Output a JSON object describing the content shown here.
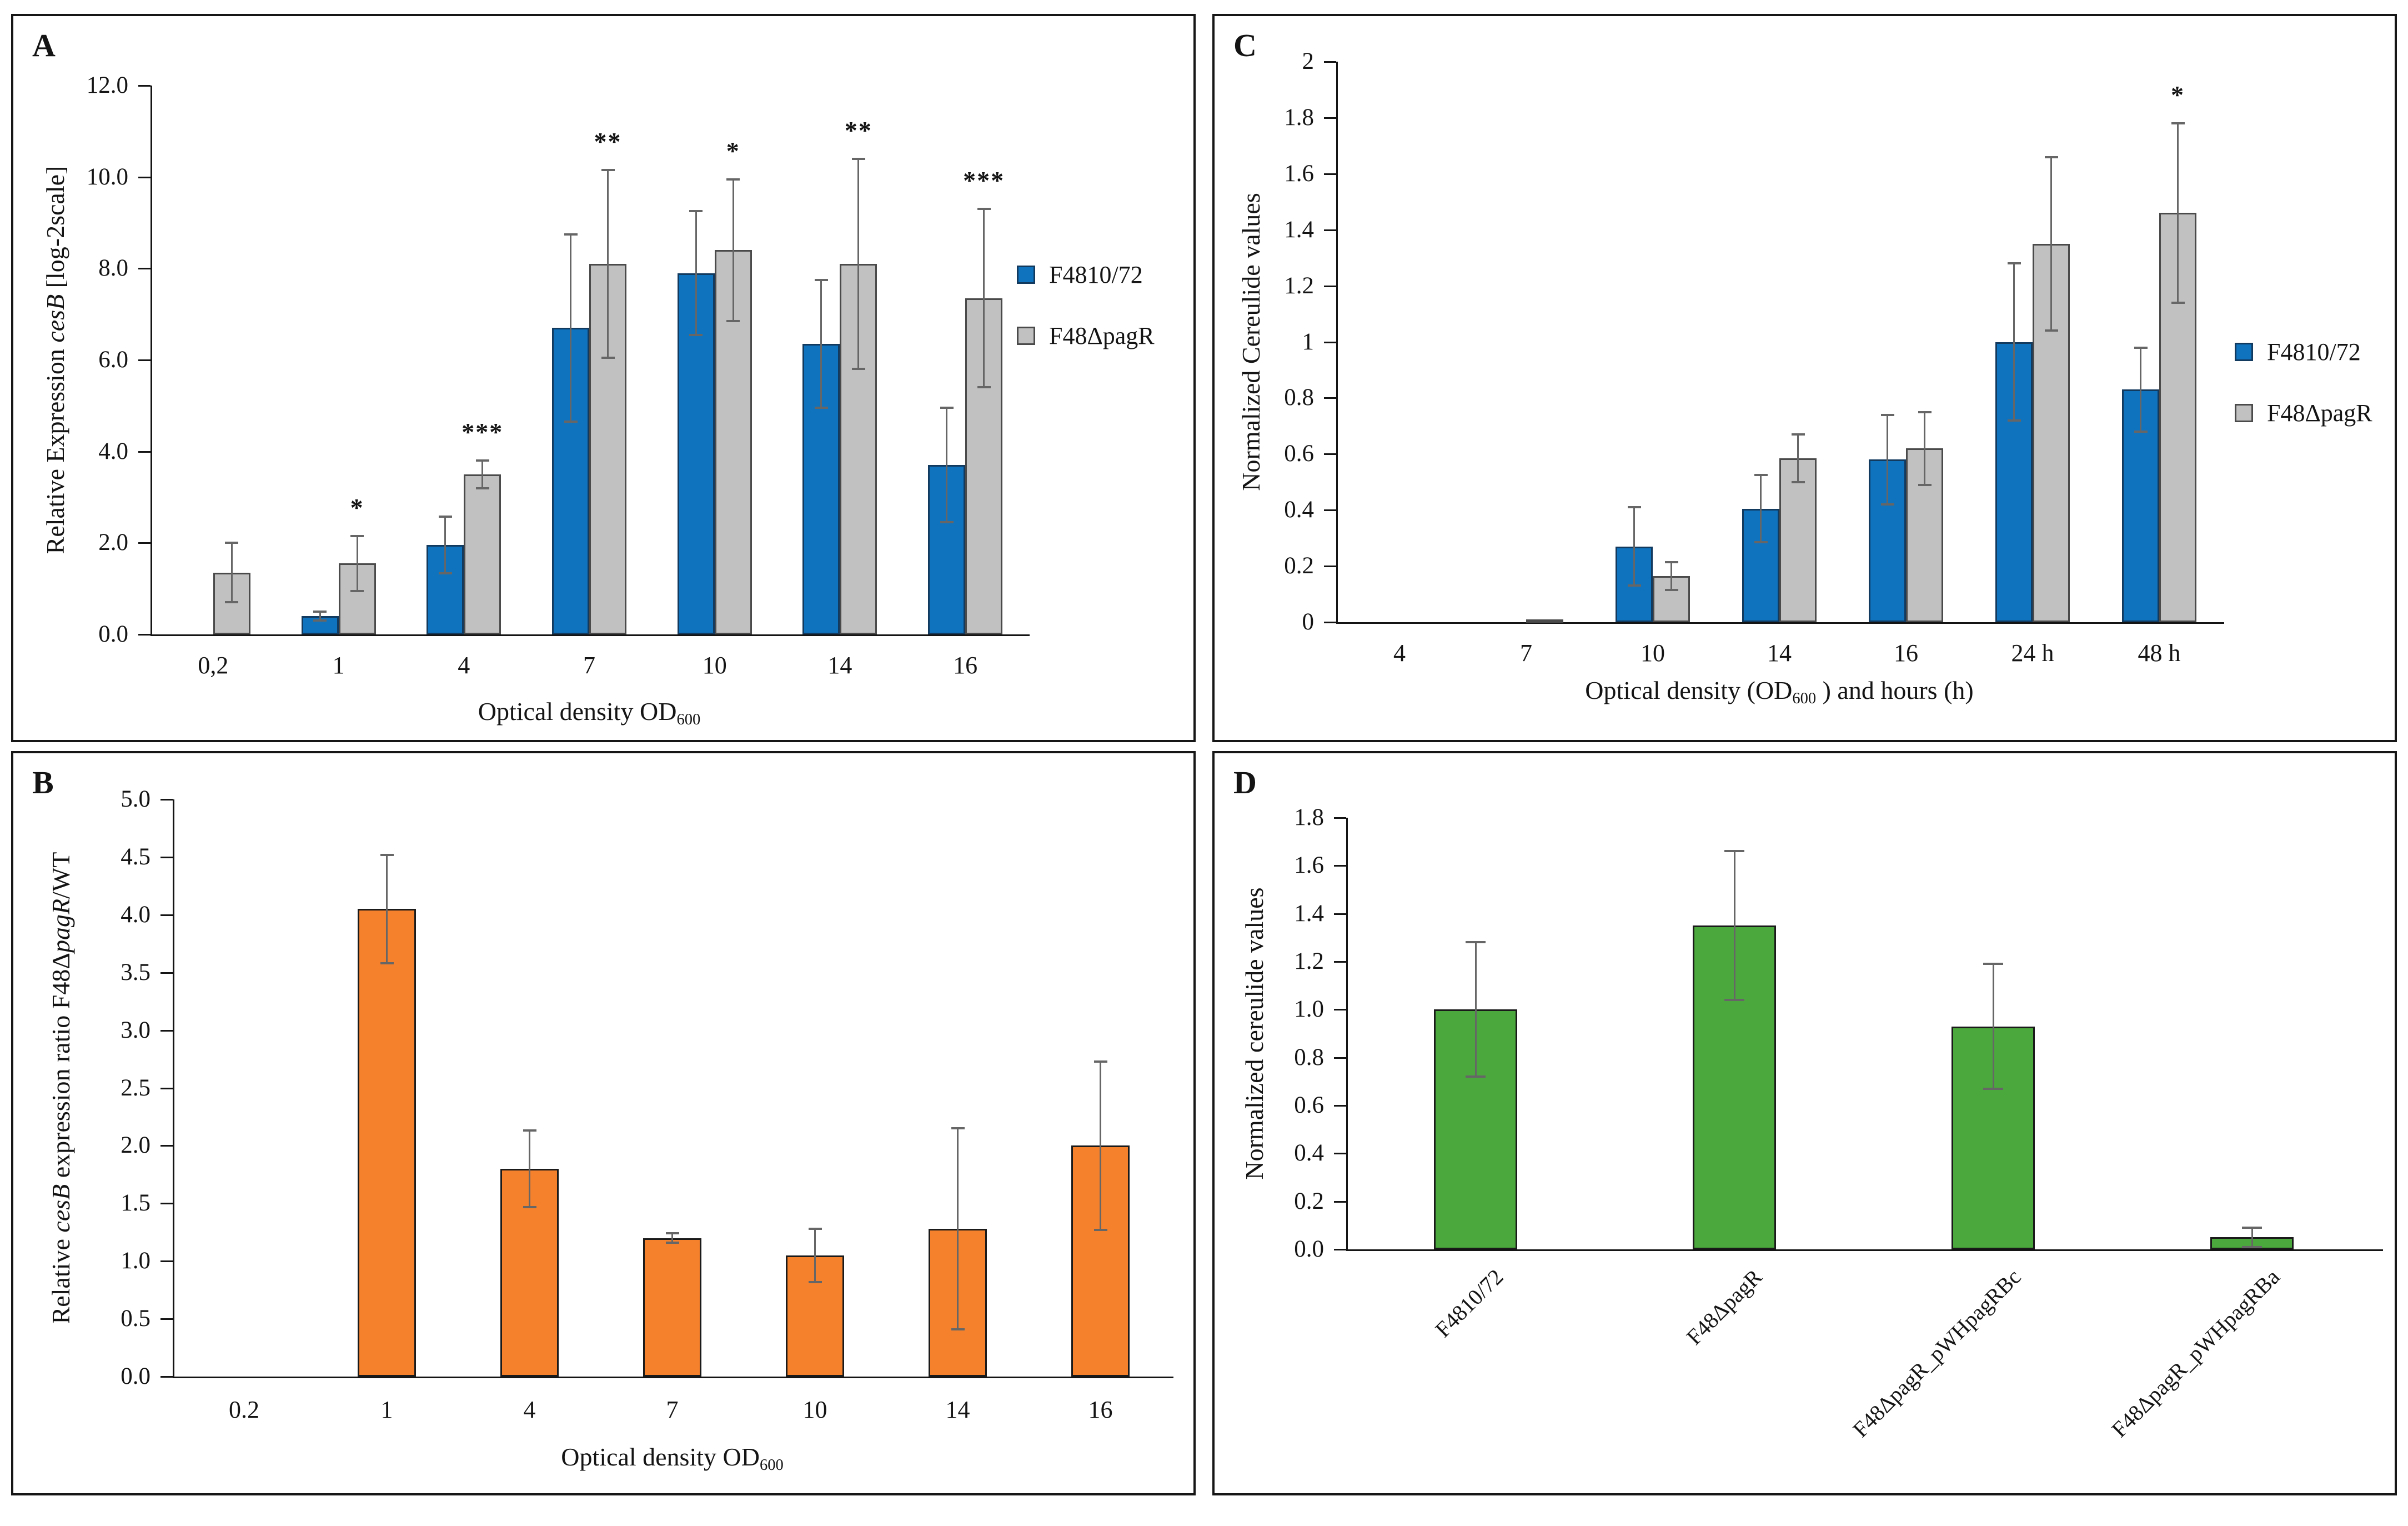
{
  "chart_data": [
    {
      "id": "A",
      "panel_label": "A",
      "type": "bar",
      "ylabel": "Relative Expression cesB [log-2scale]",
      "ylabel_rich": [
        {
          "t": "Relative Expression "
        },
        {
          "t": "cesB",
          "style": "italic"
        },
        {
          "t": " [log-2scale]"
        }
      ],
      "xlabel": "Optical density OD600",
      "xlabel_rich": [
        {
          "t": "Optical density OD"
        },
        {
          "t": "600",
          "style": "sub"
        }
      ],
      "ymin": 0,
      "ymax": 12,
      "yticks": [
        "0.0",
        "2.0",
        "4.0",
        "6.0",
        "8.0",
        "10.0",
        "12.0"
      ],
      "categories": [
        "0,2",
        "1",
        "4",
        "7",
        "10",
        "14",
        "16"
      ],
      "series": [
        {
          "name": "F4810/72",
          "color": "#1073BE",
          "border": "#12395E",
          "values": [
            0,
            0.4,
            1.95,
            6.7,
            7.9,
            6.35,
            3.7
          ],
          "errors": [
            0,
            0.1,
            0.62,
            2.05,
            1.35,
            1.4,
            1.25
          ]
        },
        {
          "name": "F48ΔpagR",
          "color": "#C1C1C1",
          "border": "#4A4A4A",
          "values": [
            1.35,
            1.55,
            3.5,
            8.1,
            8.4,
            8.1,
            7.35
          ],
          "errors": [
            0.65,
            0.6,
            0.3,
            2.05,
            1.55,
            2.3,
            1.95
          ]
        }
      ],
      "significance": [
        "",
        "*",
        "***",
        "**",
        "*",
        "**",
        "***"
      ],
      "legend": {
        "position": "right",
        "entries": [
          "F4810/72",
          "F48ΔpagR"
        ]
      },
      "error_bar_color": "#666666",
      "grid": false
    },
    {
      "id": "B",
      "panel_label": "B",
      "type": "bar",
      "ylabel": "Relative cesB expression ratio F48ΔpagR/WT",
      "ylabel_rich": [
        {
          "t": "Relative "
        },
        {
          "t": "cesB",
          "style": "italic"
        },
        {
          "t": " expression ratio F48Δ"
        },
        {
          "t": "pagR",
          "style": "italic"
        },
        {
          "t": "/WT"
        }
      ],
      "xlabel": "Optical density OD600",
      "xlabel_rich": [
        {
          "t": "Optical density OD"
        },
        {
          "t": "600",
          "style": "sub"
        }
      ],
      "ymin": 0,
      "ymax": 5,
      "yticks": [
        "0.0",
        "0.5",
        "1.0",
        "1.5",
        "2.0",
        "2.5",
        "3.0",
        "3.5",
        "4.0",
        "4.5",
        "5.0"
      ],
      "categories": [
        "0.2",
        "1",
        "4",
        "7",
        "10",
        "14",
        "16"
      ],
      "series": [
        {
          "name": "F48ΔpagR/WT ratio",
          "color": "#F5812C",
          "border": "#1a1a1a",
          "values": [
            0,
            4.05,
            1.8,
            1.2,
            1.05,
            1.28,
            2.0
          ],
          "errors": [
            0,
            0.47,
            0.33,
            0.04,
            0.23,
            0.87,
            0.73
          ]
        }
      ],
      "significance": [
        "",
        "",
        "",
        "",
        "",
        "",
        ""
      ],
      "legend": null,
      "error_bar_color": "#666666",
      "grid": false
    },
    {
      "id": "C",
      "panel_label": "C",
      "type": "bar",
      "ylabel": "Normalized Cereulide values",
      "ylabel_rich": [
        {
          "t": "Normalized Cereulide values"
        }
      ],
      "xlabel": "Optical density (OD600 ) and hours (h)",
      "xlabel_rich": [
        {
          "t": "Optical density (OD"
        },
        {
          "t": "600",
          "style": "sub"
        },
        {
          "t": " ) and hours (h)"
        }
      ],
      "ymin": 0,
      "ymax": 2,
      "yticks": [
        "0",
        "0.2",
        "0.4",
        "0.6",
        "0.8",
        "1",
        "1.2",
        "1.4",
        "1.6",
        "1.8",
        "2"
      ],
      "categories": [
        "4",
        "7",
        "10",
        "14",
        "16",
        "24 h",
        "48 h"
      ],
      "series": [
        {
          "name": "F4810/72",
          "color": "#1073BE",
          "border": "#12395E",
          "values": [
            0,
            0,
            0.27,
            0.405,
            0.58,
            1.0,
            0.83
          ],
          "errors": [
            0,
            0,
            0.14,
            0.12,
            0.16,
            0.28,
            0.15
          ]
        },
        {
          "name": "F48ΔpagR",
          "color": "#C1C1C1",
          "border": "#4A4A4A",
          "values": [
            0,
            0.01,
            0.165,
            0.585,
            0.62,
            1.35,
            1.46
          ],
          "errors": [
            0,
            0,
            0.05,
            0.085,
            0.13,
            0.31,
            0.32
          ]
        }
      ],
      "significance": [
        "",
        "",
        "",
        "",
        "",
        "",
        "*"
      ],
      "legend": {
        "position": "right",
        "entries": [
          "F4810/72",
          "F48ΔpagR"
        ]
      },
      "error_bar_color": "#666666",
      "grid": false
    },
    {
      "id": "D",
      "panel_label": "D",
      "type": "bar",
      "ylabel": "Normalized cereulide values",
      "ylabel_rich": [
        {
          "t": "Normalized cereulide values"
        }
      ],
      "xlabel": "",
      "xlabel_rich": null,
      "ymin": 0,
      "ymax": 1.8,
      "yticks": [
        "0.0",
        "0.2",
        "0.4",
        "0.6",
        "0.8",
        "1.0",
        "1.2",
        "1.4",
        "1.6",
        "1.8"
      ],
      "categories": [
        "F4810/72",
        "F48ΔpagR",
        "F48ΔpagR_pWHpagRBc",
        "F48ΔpagR_pWHpagRBa"
      ],
      "series": [
        {
          "name": "Normalized cereulide",
          "color": "#4BA83C",
          "border": "#1a1a1a",
          "values": [
            1.0,
            1.35,
            0.93,
            0.05
          ],
          "errors": [
            0.28,
            0.31,
            0.26,
            0.04
          ]
        }
      ],
      "significance": [
        "",
        "",
        "",
        ""
      ],
      "legend": null,
      "error_bar_color": "#666666",
      "grid": false,
      "rotated_xlabels": true
    }
  ]
}
